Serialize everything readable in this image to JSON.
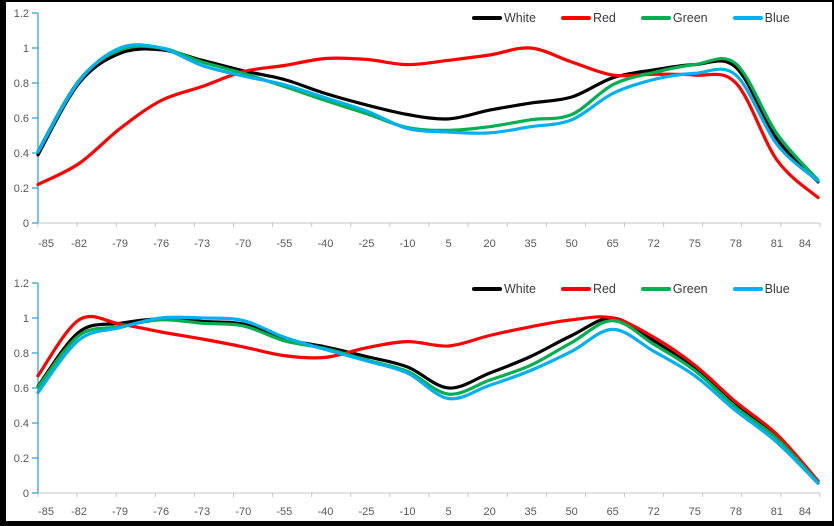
{
  "window": {
    "background": "#ffffff",
    "frame_color": "#000000"
  },
  "axes_style": {
    "y_axis_color": "#41aadd",
    "x_axis_color": "#c6c6c6",
    "tick_label_color": "#595959",
    "legend_text_color": "#3b3b3b"
  },
  "chart_data": [
    {
      "type": "line",
      "title": "",
      "xlabel": "",
      "ylabel": "",
      "grid": false,
      "smooth": true,
      "legend_position": "top-right-inside",
      "ylim": [
        0,
        1.2
      ],
      "yticks": [
        0,
        0.2,
        0.4,
        0.6,
        0.8,
        1,
        1.2
      ],
      "ytick_labels": [
        "0",
        "0.2",
        "0.4",
        "0.6",
        "0.8",
        "1",
        "1.2"
      ],
      "categories": [
        "-85",
        "-82",
        "-79",
        "-76",
        "-73",
        "-70",
        "-55",
        "-40",
        "-25",
        "-10",
        "5",
        "20",
        "35",
        "50",
        "65",
        "72",
        "75",
        "78",
        "81",
        "84"
      ],
      "series": [
        {
          "name": "White",
          "color": "#000000",
          "values": [
            0.39,
            0.8,
            0.97,
            0.99,
            0.93,
            0.87,
            0.82,
            0.74,
            0.675,
            0.62,
            0.595,
            0.645,
            0.685,
            0.72,
            0.83,
            0.875,
            0.905,
            0.89,
            0.48,
            0.235
          ]
        },
        {
          "name": "Red",
          "color": "#fe0000",
          "values": [
            0.22,
            0.34,
            0.54,
            0.7,
            0.78,
            0.865,
            0.9,
            0.94,
            0.935,
            0.905,
            0.93,
            0.96,
            1.0,
            0.92,
            0.845,
            0.85,
            0.845,
            0.8,
            0.36,
            0.145
          ]
        },
        {
          "name": "Green",
          "color": "#00b050",
          "values": [
            0.41,
            0.815,
            0.99,
            1.0,
            0.92,
            0.855,
            0.78,
            0.7,
            0.625,
            0.545,
            0.53,
            0.55,
            0.59,
            0.62,
            0.79,
            0.86,
            0.905,
            0.91,
            0.51,
            0.245
          ]
        },
        {
          "name": "Blue",
          "color": "#00b0f0",
          "values": [
            0.405,
            0.81,
            1.0,
            1.0,
            0.9,
            0.84,
            0.79,
            0.715,
            0.64,
            0.54,
            0.52,
            0.515,
            0.55,
            0.59,
            0.74,
            0.82,
            0.855,
            0.845,
            0.45,
            0.24
          ]
        }
      ]
    },
    {
      "type": "line",
      "title": "",
      "xlabel": "",
      "ylabel": "",
      "grid": false,
      "smooth": true,
      "legend_position": "top-right-inside",
      "ylim": [
        0,
        1.2
      ],
      "yticks": [
        0,
        0.2,
        0.4,
        0.6,
        0.8,
        1,
        1.2
      ],
      "ytick_labels": [
        "0",
        "0.2",
        "0.4",
        "0.6",
        "0.8",
        "1",
        "1.2"
      ],
      "categories": [
        "-85",
        "-82",
        "-79",
        "-76",
        "-73",
        "-70",
        "-55",
        "-40",
        "-25",
        "-10",
        "5",
        "20",
        "35",
        "50",
        "65",
        "72",
        "75",
        "78",
        "81",
        "84"
      ],
      "series": [
        {
          "name": "White",
          "color": "#000000",
          "values": [
            0.61,
            0.92,
            0.97,
            0.995,
            0.98,
            0.965,
            0.88,
            0.835,
            0.78,
            0.72,
            0.6,
            0.685,
            0.78,
            0.9,
            1.0,
            0.87,
            0.71,
            0.5,
            0.32,
            0.065
          ]
        },
        {
          "name": "Red",
          "color": "#fe0000",
          "values": [
            0.67,
            0.99,
            0.965,
            0.92,
            0.88,
            0.835,
            0.785,
            0.775,
            0.83,
            0.865,
            0.84,
            0.9,
            0.95,
            0.99,
            1.0,
            0.89,
            0.73,
            0.52,
            0.335,
            0.07
          ]
        },
        {
          "name": "Green",
          "color": "#00b050",
          "values": [
            0.605,
            0.9,
            0.95,
            0.99,
            0.97,
            0.955,
            0.87,
            0.825,
            0.76,
            0.695,
            0.565,
            0.645,
            0.73,
            0.86,
            0.985,
            0.85,
            0.7,
            0.49,
            0.31,
            0.06
          ]
        },
        {
          "name": "Blue",
          "color": "#00b0f0",
          "values": [
            0.575,
            0.875,
            0.945,
            1.0,
            1.0,
            0.985,
            0.89,
            0.82,
            0.755,
            0.685,
            0.54,
            0.615,
            0.7,
            0.81,
            0.935,
            0.81,
            0.67,
            0.47,
            0.29,
            0.055
          ]
        }
      ]
    }
  ]
}
